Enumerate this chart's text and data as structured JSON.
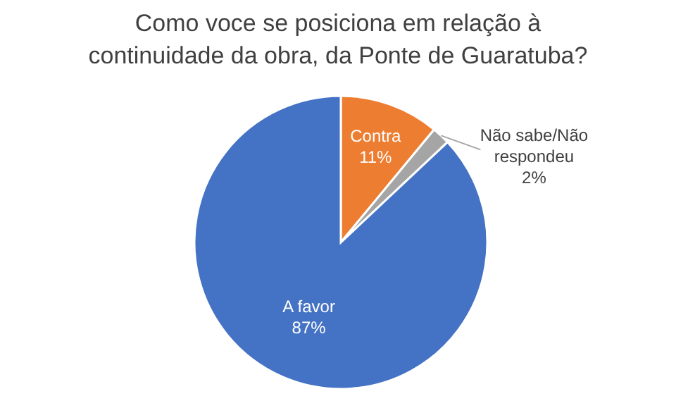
{
  "chart_data": {
    "type": "pie",
    "title": "Como voce se posiciona em relação à continuidade da obra, da Ponte de Guaratuba?",
    "categories": [
      "Contra",
      "Não sabe/Não respondeu",
      "A favor"
    ],
    "values": [
      11,
      2,
      87
    ],
    "colors": [
      "#ed7d31",
      "#a5a5a5",
      "#4472c4"
    ],
    "value_labels": [
      "11%",
      "2%",
      "87%"
    ]
  }
}
